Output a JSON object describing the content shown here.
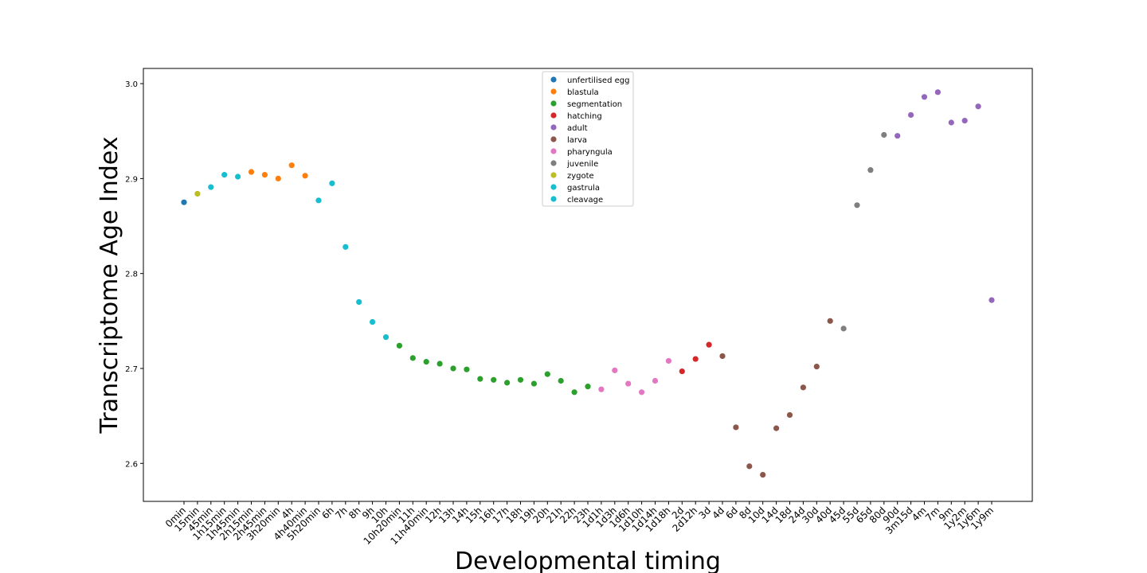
{
  "chart_data": {
    "type": "scatter",
    "xlabel": "Developmental timing",
    "ylabel": "Transcriptome Age Index",
    "ylim": [
      2.56,
      3.016
    ],
    "yticks": [
      2.6,
      2.7,
      2.8,
      2.9,
      3.0
    ],
    "ytick_labels": [
      "2.6",
      "2.7",
      "2.8",
      "2.9",
      "3.0"
    ],
    "grid": false,
    "legend_placement": "upper center",
    "categories": [
      "0min",
      "15min",
      "45min",
      "1h15min",
      "1h45min",
      "2h15min",
      "2h45min",
      "3h20min",
      "4h",
      "4h40min",
      "5h20min",
      "6h",
      "7h",
      "8h",
      "9h",
      "10h",
      "10h20min",
      "11h",
      "11h40min",
      "12h",
      "13h",
      "14h",
      "15h",
      "16h",
      "17h",
      "18h",
      "19h",
      "20h",
      "21h",
      "22h",
      "23h",
      "1d1h",
      "1d3h",
      "1d6h",
      "1d10h",
      "1d14h",
      "1d18h",
      "2d",
      "2d12h",
      "3d",
      "4d",
      "6d",
      "8d",
      "10d",
      "14d",
      "18d",
      "24d",
      "30d",
      "40d",
      "45d",
      "55d",
      "65d",
      "80d",
      "90d",
      "3m15d",
      "4m",
      "7m",
      "9m",
      "1y2m",
      "1y6m",
      "1y9m"
    ],
    "series": [
      {
        "name": "unfertilised egg",
        "color": "#1f77b4",
        "points": [
          {
            "x": "0min",
            "y": 2.875
          }
        ]
      },
      {
        "name": "blastula",
        "color": "#ff7f0e",
        "points": [
          {
            "x": "2h15min",
            "y": 2.907
          },
          {
            "x": "2h45min",
            "y": 2.904
          },
          {
            "x": "3h20min",
            "y": 2.9
          },
          {
            "x": "4h",
            "y": 2.914
          },
          {
            "x": "4h40min",
            "y": 2.903
          }
        ]
      },
      {
        "name": "segmentation",
        "color": "#2ca02c",
        "points": [
          {
            "x": "10h20min",
            "y": 2.724
          },
          {
            "x": "11h",
            "y": 2.711
          },
          {
            "x": "11h40min",
            "y": 2.707
          },
          {
            "x": "12h",
            "y": 2.705
          },
          {
            "x": "13h",
            "y": 2.7
          },
          {
            "x": "14h",
            "y": 2.699
          },
          {
            "x": "15h",
            "y": 2.689
          },
          {
            "x": "16h",
            "y": 2.688
          },
          {
            "x": "17h",
            "y": 2.685
          },
          {
            "x": "18h",
            "y": 2.688
          },
          {
            "x": "19h",
            "y": 2.684
          },
          {
            "x": "20h",
            "y": 2.694
          },
          {
            "x": "21h",
            "y": 2.687
          },
          {
            "x": "22h",
            "y": 2.675
          },
          {
            "x": "23h",
            "y": 2.681
          }
        ]
      },
      {
        "name": "hatching",
        "color": "#d62728",
        "points": [
          {
            "x": "2d",
            "y": 2.697
          },
          {
            "x": "2d12h",
            "y": 2.71
          },
          {
            "x": "3d",
            "y": 2.725
          }
        ]
      },
      {
        "name": "adult",
        "color": "#9467bd",
        "points": [
          {
            "x": "90d",
            "y": 2.945
          },
          {
            "x": "3m15d",
            "y": 2.967
          },
          {
            "x": "4m",
            "y": 2.986
          },
          {
            "x": "7m",
            "y": 2.991
          },
          {
            "x": "9m",
            "y": 2.959
          },
          {
            "x": "1y2m",
            "y": 2.961
          },
          {
            "x": "1y6m",
            "y": 2.976
          },
          {
            "x": "1y9m",
            "y": 2.772
          }
        ]
      },
      {
        "name": "larva",
        "color": "#8c564b",
        "points": [
          {
            "x": "4d",
            "y": 2.713
          },
          {
            "x": "6d",
            "y": 2.638
          },
          {
            "x": "8d",
            "y": 2.597
          },
          {
            "x": "10d",
            "y": 2.588
          },
          {
            "x": "14d",
            "y": 2.637
          },
          {
            "x": "18d",
            "y": 2.651
          },
          {
            "x": "24d",
            "y": 2.68
          },
          {
            "x": "30d",
            "y": 2.702
          },
          {
            "x": "40d",
            "y": 2.75
          }
        ]
      },
      {
        "name": "pharyngula",
        "color": "#e377c2",
        "points": [
          {
            "x": "1d1h",
            "y": 2.678
          },
          {
            "x": "1d3h",
            "y": 2.698
          },
          {
            "x": "1d6h",
            "y": 2.684
          },
          {
            "x": "1d10h",
            "y": 2.675
          },
          {
            "x": "1d14h",
            "y": 2.687
          },
          {
            "x": "1d18h",
            "y": 2.708
          }
        ]
      },
      {
        "name": "juvenile",
        "color": "#7f7f7f",
        "points": [
          {
            "x": "45d",
            "y": 2.742
          },
          {
            "x": "55d",
            "y": 2.872
          },
          {
            "x": "65d",
            "y": 2.909
          },
          {
            "x": "80d",
            "y": 2.946
          }
        ]
      },
      {
        "name": "zygote",
        "color": "#bcbd22",
        "points": [
          {
            "x": "15min",
            "y": 2.884
          }
        ]
      },
      {
        "name": "gastrula",
        "color": "#17becf",
        "points": [
          {
            "x": "5h20min",
            "y": 2.877
          },
          {
            "x": "6h",
            "y": 2.895
          },
          {
            "x": "7h",
            "y": 2.828
          },
          {
            "x": "8h",
            "y": 2.77
          },
          {
            "x": "9h",
            "y": 2.749
          },
          {
            "x": "10h",
            "y": 2.733
          }
        ]
      },
      {
        "name": "cleavage",
        "color": "#17becf",
        "points": [
          {
            "x": "45min",
            "y": 2.891
          },
          {
            "x": "1h15min",
            "y": 2.904
          },
          {
            "x": "1h45min",
            "y": 2.902
          }
        ]
      }
    ]
  }
}
